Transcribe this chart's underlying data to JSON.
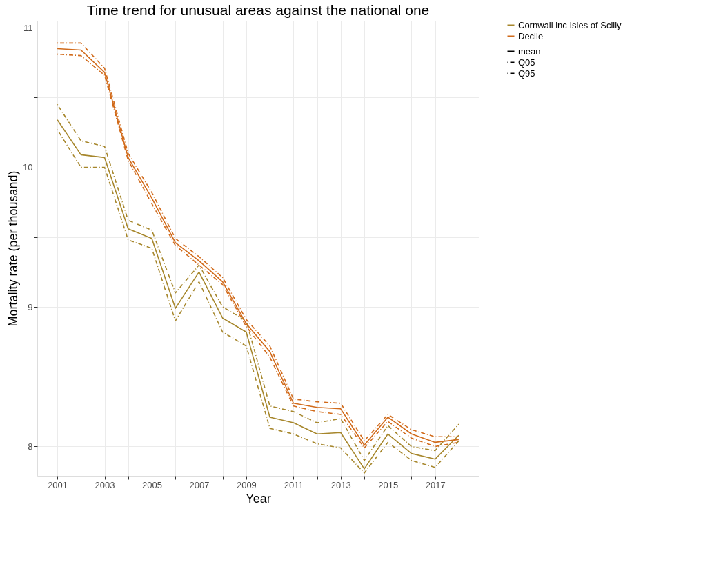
{
  "chart_data": {
    "type": "line",
    "title": "Time trend for unusual areas against the national one",
    "xlabel": "Year",
    "ylabel": "Mortality rate (per thousand)",
    "x": [
      2001,
      2002,
      2003,
      2004,
      2005,
      2006,
      2007,
      2008,
      2009,
      2010,
      2011,
      2012,
      2013,
      2014,
      2015,
      2016,
      2017,
      2018
    ],
    "xlim": [
      2000.15,
      2018.85
    ],
    "xticks": [
      2001,
      {
        "value": 2002,
        "label": null
      },
      2003,
      {
        "value": 2004,
        "label": null
      },
      2005,
      {
        "value": 2006,
        "label": null
      },
      2007,
      {
        "value": 2008,
        "label": null
      },
      2009,
      {
        "value": 2010,
        "label": null
      },
      2011,
      {
        "value": 2012,
        "label": null
      },
      2013,
      {
        "value": 2014,
        "label": null
      },
      2015,
      {
        "value": 2016,
        "label": null
      },
      2017,
      {
        "value": 2018,
        "label": null
      }
    ],
    "ylim": [
      7.79,
      11.05
    ],
    "yticks": [
      8,
      {
        "value": 8.5,
        "label": null
      },
      9,
      {
        "value": 9.5,
        "label": null
      },
      10,
      {
        "value": 10.5,
        "label": null
      },
      11
    ],
    "grid": true,
    "legend": "right",
    "annotations": [
      "mean",
      "Q05",
      "Q95"
    ],
    "series": [
      {
        "name": "Cornwall inc Isles of Scilly",
        "color": "#a6862b",
        "line_style": "solid",
        "values": [
          10.34,
          10.09,
          10.07,
          9.56,
          9.49,
          8.99,
          9.25,
          8.92,
          8.82,
          8.21,
          8.17,
          8.09,
          8.1,
          7.84,
          8.09,
          7.95,
          7.91,
          8.08
        ]
      },
      {
        "color": "#a6862b",
        "line_style": "dashed",
        "values": [
          10.27,
          10.0,
          10.0,
          9.48,
          9.42,
          8.9,
          9.18,
          8.82,
          8.72,
          8.13,
          8.09,
          8.02,
          7.99,
          7.81,
          8.03,
          7.9,
          7.85,
          8.04
        ]
      },
      {
        "color": "#a6862b",
        "line_style": "dashed",
        "values": [
          10.45,
          10.19,
          10.15,
          9.62,
          9.55,
          9.1,
          9.3,
          9.0,
          8.9,
          8.29,
          8.25,
          8.17,
          8.2,
          7.9,
          8.15,
          8.0,
          7.97,
          8.16
        ]
      },
      {
        "name": "Decile",
        "color": "#d16a1a",
        "line_style": "solid",
        "values": [
          10.85,
          10.84,
          10.68,
          10.07,
          9.78,
          9.46,
          9.33,
          9.18,
          8.88,
          8.68,
          8.31,
          8.28,
          8.27,
          8.01,
          8.21,
          8.09,
          8.03,
          8.05
        ]
      },
      {
        "color": "#d16a1a",
        "line_style": "dashed",
        "values": [
          10.81,
          10.8,
          10.66,
          10.05,
          9.74,
          9.44,
          9.3,
          9.16,
          8.86,
          8.64,
          8.29,
          8.25,
          8.23,
          7.99,
          8.18,
          8.06,
          8.0,
          8.03
        ]
      },
      {
        "color": "#d16a1a",
        "line_style": "dashed",
        "values": [
          10.89,
          10.89,
          10.71,
          10.1,
          9.82,
          9.49,
          9.36,
          9.21,
          8.91,
          8.72,
          8.34,
          8.32,
          8.31,
          8.04,
          8.23,
          8.12,
          8.07,
          8.07
        ]
      }
    ]
  }
}
